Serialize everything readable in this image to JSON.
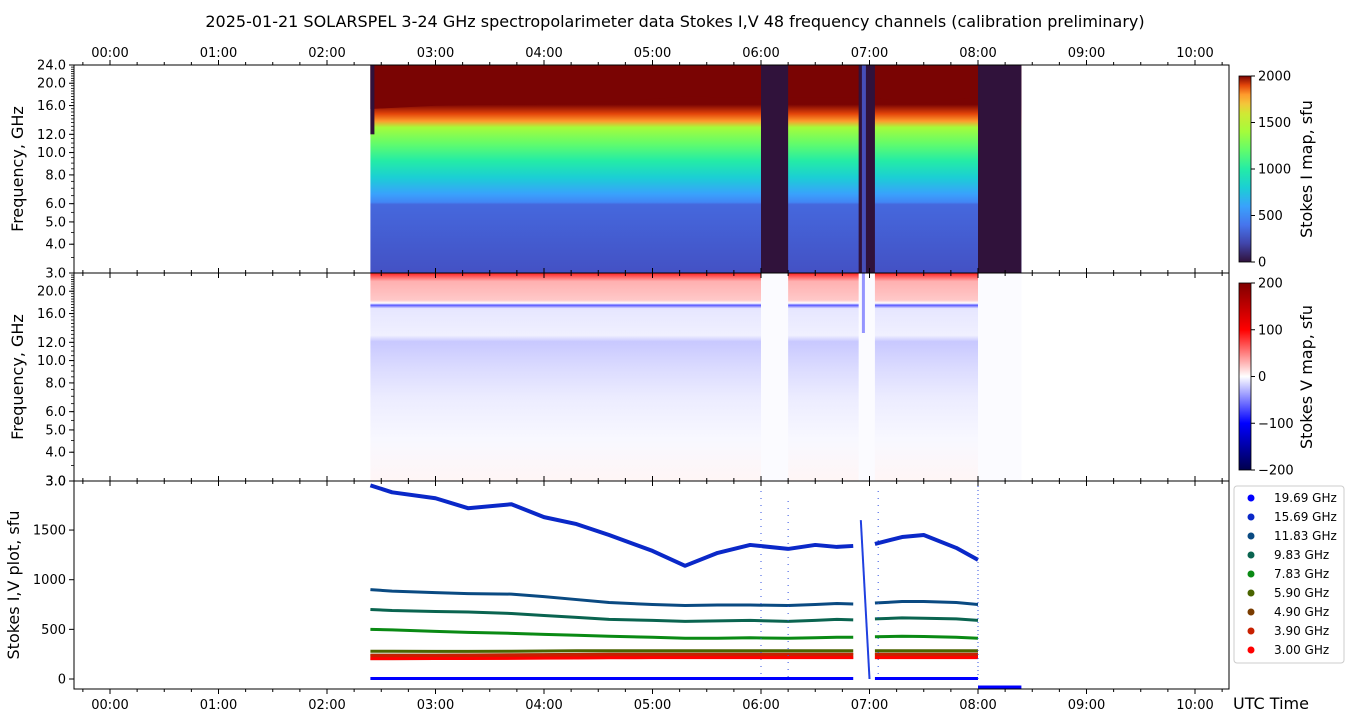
{
  "chart_data": [
    {
      "type": "heatmap",
      "panel": "stokes-i-map",
      "title": "2025-01-21  SOLARSPEL  3-24 GHz spectropolarimeter data   Stokes I,V   48 frequency channels   (calibration preliminary)",
      "xlabel": "",
      "ylabel": "Frequency, GHz",
      "x_axis": "UTC time (hours)",
      "xlim": [
        -0.33,
        10.33
      ],
      "ylim_ghz": [
        3.0,
        24.0
      ],
      "yscale": "log",
      "x_ticks": [
        "00:00",
        "01:00",
        "02:00",
        "03:00",
        "04:00",
        "05:00",
        "06:00",
        "07:00",
        "08:00",
        "09:00",
        "10:00"
      ],
      "y_ticks": [
        "3.0",
        "4.0",
        "5.0",
        "6.0",
        "8.0",
        "10.0",
        "12.0",
        "16.0",
        "20.0",
        "24.0"
      ],
      "colorbar": {
        "label": "Stokes I map, sfu",
        "range": [
          0,
          2000
        ],
        "ticks": [
          "0",
          "500",
          "1000",
          "1500",
          "2000"
        ],
        "colormap": "turbo"
      },
      "data_interval_hours": [
        2.4,
        8.4
      ],
      "gaps_hours": [
        [
          6.0,
          6.25
        ],
        [
          6.9,
          7.05
        ],
        [
          8.0,
          8.4
        ]
      ],
      "saturation_boundary_ghz": {
        "t": [
          2.4,
          3.0,
          4.0,
          4.8,
          5.3,
          5.8,
          6.25,
          6.9,
          7.05,
          7.4,
          8.0
        ],
        "ghz": [
          15.0,
          15.5,
          15.8,
          16.3,
          17.0,
          16.8,
          16.8,
          16.8,
          16.8,
          15.8,
          16.9
        ]
      }
    },
    {
      "type": "heatmap",
      "panel": "stokes-v-map",
      "ylabel": "Frequency, GHz",
      "xlim": [
        -0.33,
        10.33
      ],
      "ylim_ghz": [
        3.0,
        24.0
      ],
      "yscale": "log",
      "y_ticks": [
        "3.0",
        "4.0",
        "5.0",
        "6.0",
        "8.0",
        "10.0",
        "12.0",
        "16.0",
        "20.0"
      ],
      "colorbar": {
        "label": "Stokes V map, sfu",
        "range": [
          -200,
          200
        ],
        "ticks": [
          "−200",
          "−100",
          "0",
          "100",
          "200"
        ],
        "colormap": "seismic"
      },
      "features": "positive (red) above ~18 GHz, thin negative (blue) band ~18 GHz, weak negative below ~14 GHz"
    },
    {
      "type": "line",
      "panel": "stokes-iv-plot",
      "ylabel": "Stokes I,V plot, sfu",
      "xlabel": "UTC Time",
      "xlim": [
        -0.33,
        10.33
      ],
      "ylim": [
        -100,
        1950
      ],
      "y_ticks": [
        "0",
        "500",
        "1000",
        "1500"
      ],
      "x_ticks": [
        "00:00",
        "01:00",
        "02:00",
        "03:00",
        "04:00",
        "05:00",
        "06:00",
        "07:00",
        "08:00",
        "09:00",
        "10:00"
      ],
      "legend_position": "right",
      "x_hours": [
        2.4,
        2.6,
        3.0,
        3.3,
        3.7,
        4.0,
        4.3,
        4.6,
        5.0,
        5.3,
        5.6,
        5.9,
        6.25,
        6.5,
        6.7,
        6.85,
        7.05,
        7.3,
        7.5,
        7.8,
        8.0
      ],
      "series": [
        {
          "name": "19.69 GHz",
          "color": "#0000ff",
          "values": [
            5,
            5,
            5,
            5,
            5,
            5,
            5,
            5,
            5,
            5,
            5,
            5,
            5,
            5,
            5,
            5,
            5,
            5,
            5,
            5,
            5
          ]
        },
        {
          "name": "15.69 GHz",
          "color": "#0a28c8",
          "values": [
            1950,
            1880,
            1820,
            1720,
            1760,
            1630,
            1560,
            1450,
            1290,
            1140,
            1270,
            1350,
            1310,
            1350,
            1330,
            1340,
            1360,
            1430,
            1450,
            1320,
            1200
          ]
        },
        {
          "name": "11.83 GHz",
          "color": "#0a4a82",
          "values": [
            900,
            885,
            870,
            860,
            855,
            830,
            800,
            770,
            750,
            740,
            745,
            745,
            740,
            750,
            760,
            755,
            765,
            780,
            780,
            770,
            750
          ]
        },
        {
          "name": "9.83 GHz",
          "color": "#0a6450",
          "values": [
            700,
            690,
            680,
            675,
            660,
            640,
            620,
            600,
            590,
            580,
            585,
            590,
            580,
            590,
            600,
            595,
            605,
            615,
            612,
            605,
            590
          ]
        },
        {
          "name": "7.83 GHz",
          "color": "#0a8a14",
          "values": [
            500,
            495,
            480,
            470,
            460,
            450,
            440,
            430,
            420,
            410,
            410,
            415,
            410,
            415,
            420,
            420,
            425,
            430,
            428,
            420,
            410
          ]
        },
        {
          "name": "5.90 GHz",
          "color": "#4a6400",
          "values": [
            280,
            280,
            278,
            278,
            280,
            282,
            284,
            285,
            285,
            285,
            285,
            285,
            285,
            285,
            285,
            285,
            285,
            285,
            285,
            285,
            285
          ]
        },
        {
          "name": "4.90 GHz",
          "color": "#7a3c00",
          "values": [
            240,
            240,
            240,
            242,
            244,
            246,
            248,
            250,
            250,
            250,
            250,
            250,
            250,
            250,
            250,
            250,
            250,
            250,
            250,
            250,
            250
          ]
        },
        {
          "name": "3.90 GHz",
          "color": "#c82000",
          "values": [
            220,
            220,
            222,
            224,
            226,
            228,
            230,
            232,
            232,
            232,
            232,
            232,
            232,
            232,
            232,
            232,
            232,
            232,
            232,
            232,
            232
          ]
        },
        {
          "name": "3.00 GHz",
          "color": "#ff0000",
          "values": [
            205,
            205,
            206,
            207,
            208,
            210,
            212,
            214,
            215,
            215,
            215,
            215,
            215,
            215,
            215,
            215,
            215,
            215,
            215,
            215,
            215
          ]
        }
      ],
      "gaps_hours": [
        [
          6.0,
          6.25
        ],
        [
          6.9,
          7.05
        ]
      ]
    }
  ]
}
